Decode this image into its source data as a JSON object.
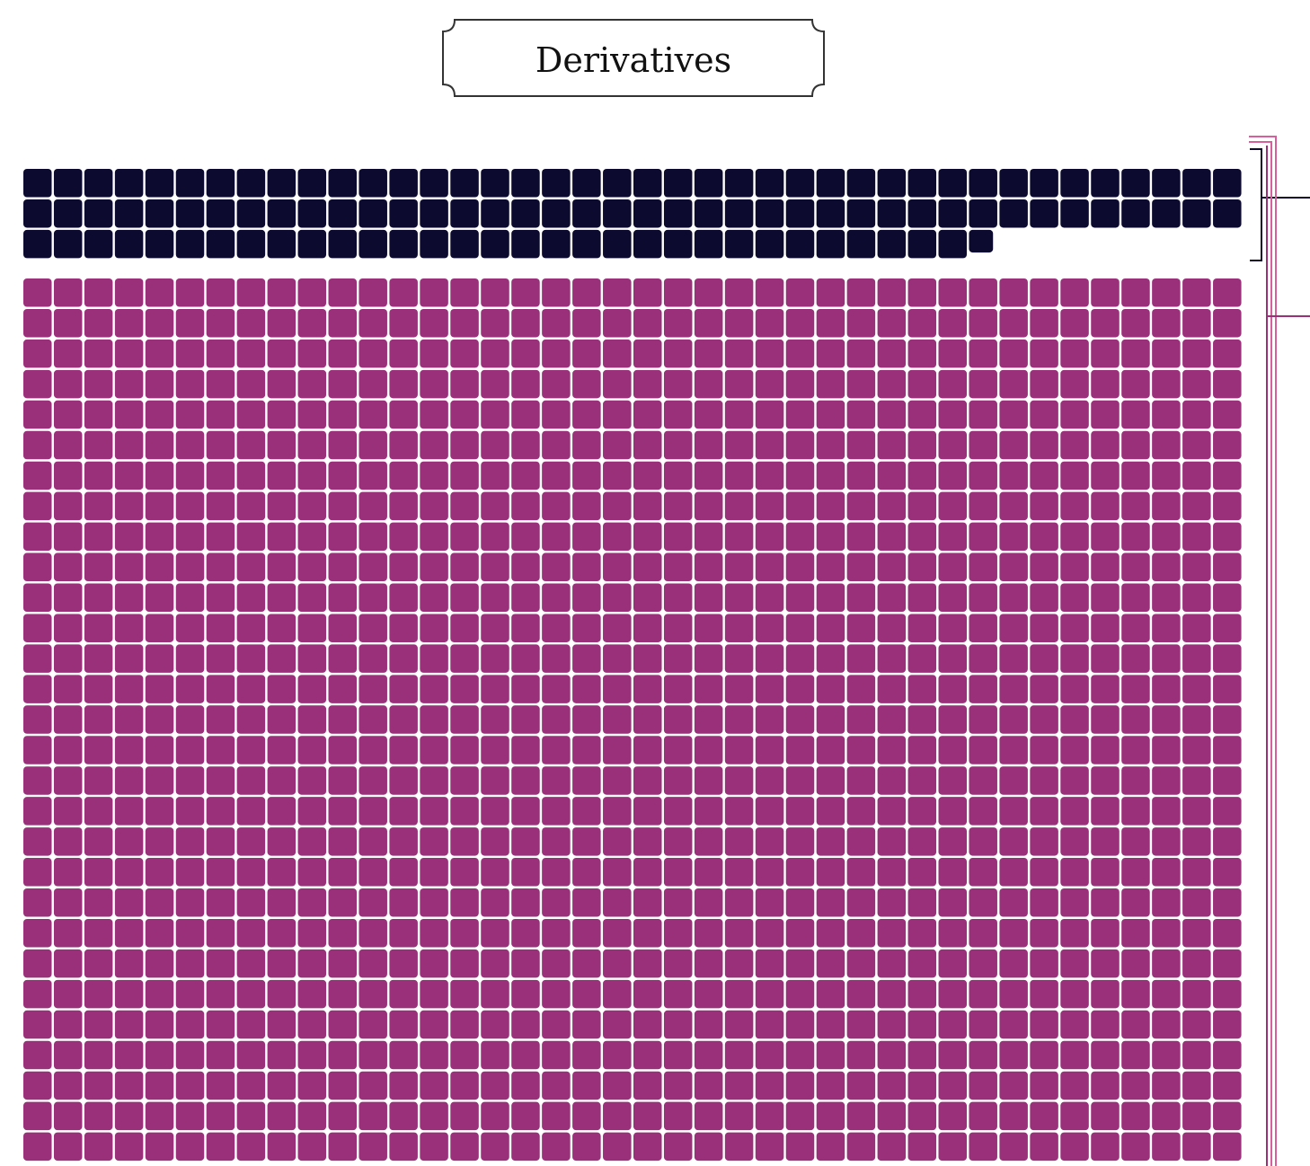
{
  "chart_data": {
    "type": "waffle",
    "title": "Derivatives",
    "columns": 40,
    "unit_shape": "rounded-square",
    "series": [
      {
        "name": "",
        "count": 112,
        "color": "#0c0a2e",
        "partial_last_unit": true
      },
      {
        "name": "",
        "count": 1160,
        "color": "#9a2f7a",
        "continues_beyond_view": true
      }
    ],
    "grid_line_color": "#ffffff",
    "bracket_colors": [
      "#0c0a2e",
      "#d6609e",
      "#9a2f7a"
    ]
  }
}
